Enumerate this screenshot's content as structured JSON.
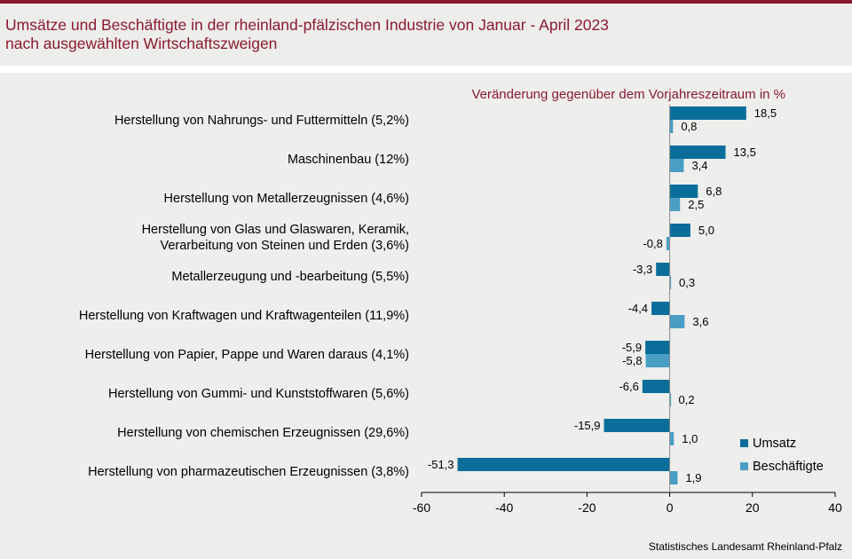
{
  "title_line1": "Umsätze und Beschäftigte in der rheinland-pfälzischen Industrie von Januar - April 2023",
  "title_line2": "nach ausgewählten Wirtschaftszweigen",
  "source": "Statistisches Landesamt Rheinland-Pfalz",
  "colors": {
    "umsatz": "#0b6e9a",
    "beschaeftigte": "#4a9ec4",
    "title": "#8b1a2f"
  },
  "chart_data": {
    "type": "bar",
    "orientation": "horizontal",
    "subtitle": "Veränderung gegenüber dem Vorjahreszeitraum  in %",
    "categories": [
      [
        "Herstellung von Nahrungs- und Futtermitteln (5,2%)"
      ],
      [
        "Maschinenbau (12%)"
      ],
      [
        "Herstellung von Metallerzeugnissen (4,6%)"
      ],
      [
        "Herstellung von Glas und Glaswaren, Keramik,",
        "Verarbeitung von Steinen und Erden (3,6%)"
      ],
      [
        "Metallerzeugung und -bearbeitung (5,5%)"
      ],
      [
        "Herstellung von Kraftwagen und Kraftwagenteilen (11,9%)"
      ],
      [
        "Herstellung von Papier, Pappe und Waren daraus (4,1%)"
      ],
      [
        "Herstellung von Gummi- und Kunststoffwaren (5,6%)"
      ],
      [
        "Herstellung von chemischen Erzeugnissen (29,6%)"
      ],
      [
        "Herstellung von pharmazeutischen Erzeugnissen (3,8%)"
      ]
    ],
    "series": [
      {
        "name": "Umsatz",
        "values": [
          18.5,
          13.5,
          6.8,
          5.0,
          -3.3,
          -4.4,
          -5.9,
          -6.6,
          -15.9,
          -51.3
        ],
        "labels": [
          "18,5",
          "13,5",
          "6,8",
          "5,0",
          "-3,3",
          "-4,4",
          "-5,9",
          "-6,6",
          "-15,9",
          "-51,3"
        ]
      },
      {
        "name": "Beschäftigte",
        "values": [
          0.8,
          3.4,
          2.5,
          -0.8,
          0.3,
          3.6,
          -5.8,
          0.2,
          1.0,
          1.9
        ],
        "labels": [
          "0,8",
          "3,4",
          "2,5",
          "-0,8",
          "0,3",
          "3,6",
          "-5,8",
          "0,2",
          "1,0",
          "1,9"
        ]
      }
    ],
    "xlim": [
      -60,
      40
    ],
    "xticks": [
      -60,
      -40,
      -20,
      0,
      20,
      40
    ],
    "legend_position": "bottom-right"
  }
}
